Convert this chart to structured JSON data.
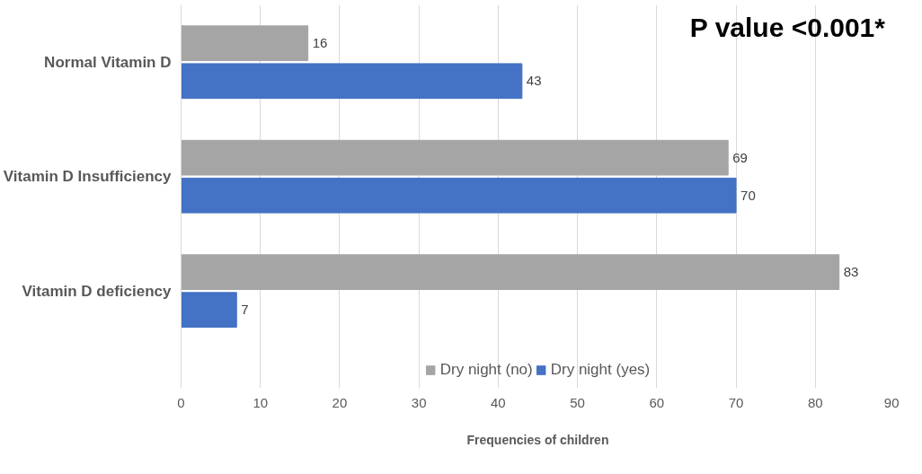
{
  "chart_data": {
    "type": "bar",
    "orientation": "horizontal",
    "xlabel": "Frequencies of children",
    "categories": [
      "Normal Vitamin D",
      "Vitamin D Insufficiency",
      "Vitamin D deficiency"
    ],
    "series": [
      {
        "name": "Dry night (no)",
        "color": "#a5a5a5",
        "values": [
          16,
          69,
          83
        ]
      },
      {
        "name": "Dry night (yes)",
        "color": "#4472c4",
        "values": [
          43,
          70,
          7
        ]
      }
    ],
    "xlim": [
      0,
      90
    ],
    "xticks": [
      0,
      10,
      20,
      30,
      40,
      50,
      60,
      70,
      80,
      90
    ],
    "grid": "x",
    "legend": "bottom",
    "data_labels": true,
    "annotations": [
      "P value <0.001*"
    ]
  }
}
